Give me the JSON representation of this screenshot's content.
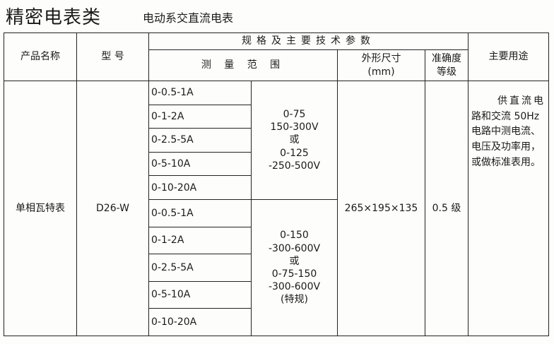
{
  "title": "精密电表类",
  "subtitle": "电动系交直流电表",
  "headers": {
    "name": "产品名称",
    "model": "型 号",
    "spec": "规格及主要技术参数",
    "range": "测 量 范 围",
    "size": "外形尺寸",
    "size_unit": "(mm)",
    "accuracy": "准确度",
    "accuracy2": "等级",
    "usage": "主要用途"
  },
  "row": {
    "name": "单相瓦特表",
    "model": "D26-W",
    "currents": [
      "0-0.5-1A",
      "0-1-2A",
      "0-2.5-5A",
      "0-5-10A",
      "0-10-20A",
      "0-0.5-1A",
      "0-1-2A",
      "0-2.5-5A",
      "0-5-10A",
      "0-10-20A"
    ],
    "voltage1": [
      "0-75",
      "150-300V",
      "或",
      "0-125",
      "-250-500V"
    ],
    "voltage2": [
      "0-150",
      "-300-600V",
      "或",
      "0-75-150",
      "-300-600V",
      "(特规)"
    ],
    "size": "265×195×135",
    "accuracy": "0.5 级",
    "usage": [
      "供直流电",
      "路和交流 50Hz",
      "电路中测电流、",
      "电压及功率用，",
      "或做标准表用。"
    ]
  }
}
